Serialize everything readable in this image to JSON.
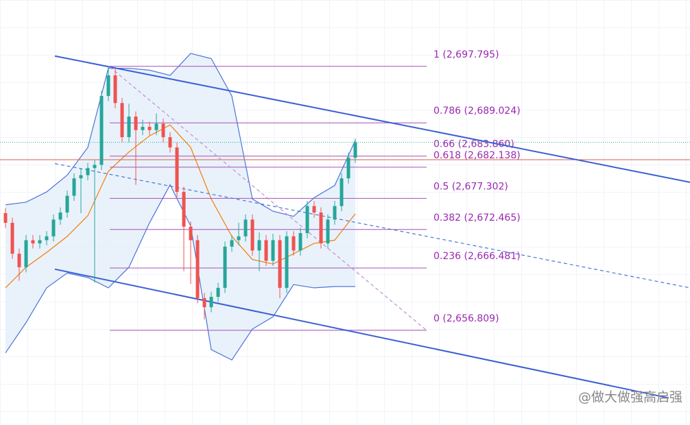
{
  "chart_data": {
    "type": "candlestick",
    "xlim": [
      -0.8,
      99.8
    ],
    "ylim": [
      2642.1,
      2708.1
    ],
    "candles": {
      "up_color": "#26a69a",
      "down_color": "#ef5350",
      "open": [
        2675.0,
        2673.5,
        2668.7,
        2666.6,
        2670.8,
        2670.3,
        2670.8,
        2671.4,
        2674.0,
        2675.1,
        2677.7,
        2680.4,
        2680.9,
        2682.0,
        2682.5,
        2693.2,
        2696.4,
        2692.1,
        2686.8,
        2690.0,
        2687.9,
        2688.4,
        2687.9,
        2688.9,
        2686.8,
        2685.2,
        2678.3,
        2672.9,
        2670.8,
        2661.8,
        2660.4,
        2662.0,
        2663.4,
        2669.8,
        2670.8,
        2671.4,
        2674.0,
        2669.2,
        2670.8,
        2667.6,
        2670.8,
        2663.4,
        2671.4,
        2669.2,
        2671.9,
        2676.1,
        2675.1,
        2670.3,
        2674.0,
        2676.1,
        2680.4,
        2683.6
      ],
      "high": [
        2675.8,
        2674.3,
        2669.5,
        2671.6,
        2671.6,
        2671.6,
        2672.2,
        2674.8,
        2675.9,
        2678.5,
        2681.2,
        2682.0,
        2682.8,
        2683.3,
        2694.0,
        2697.8,
        2697.5,
        2692.9,
        2692.0,
        2690.8,
        2689.5,
        2689.2,
        2690.5,
        2689.7,
        2687.6,
        2686.0,
        2679.1,
        2673.7,
        2671.6,
        2662.6,
        2662.8,
        2664.2,
        2670.6,
        2671.6,
        2673.5,
        2674.8,
        2674.8,
        2672.0,
        2671.6,
        2671.8,
        2671.6,
        2672.2,
        2672.2,
        2672.7,
        2676.9,
        2676.9,
        2675.9,
        2674.8,
        2676.9,
        2681.2,
        2684.4,
        2686.6
      ],
      "low": [
        2672.7,
        2667.9,
        2664.5,
        2665.8,
        2669.5,
        2669.5,
        2670.0,
        2670.6,
        2673.2,
        2674.3,
        2676.9,
        2675.0,
        2680.1,
        2664.2,
        2681.7,
        2692.4,
        2691.3,
        2686.0,
        2686.0,
        2679.4,
        2687.1,
        2687.1,
        2687.1,
        2686.0,
        2684.4,
        2677.5,
        2666.0,
        2664.0,
        2661.0,
        2658.5,
        2659.6,
        2661.2,
        2662.6,
        2669.0,
        2670.0,
        2670.6,
        2668.4,
        2666.0,
        2666.8,
        2666.8,
        2661.8,
        2662.6,
        2668.4,
        2668.4,
        2671.1,
        2674.3,
        2669.5,
        2669.5,
        2673.2,
        2675.3,
        2679.6,
        2682.8
      ],
      "close": [
        2673.5,
        2668.7,
        2666.6,
        2670.8,
        2670.3,
        2670.8,
        2671.4,
        2674.0,
        2675.1,
        2677.7,
        2680.4,
        2680.9,
        2682.0,
        2682.5,
        2693.2,
        2696.4,
        2692.1,
        2686.8,
        2690.0,
        2687.9,
        2688.4,
        2687.9,
        2688.9,
        2686.8,
        2685.2,
        2678.3,
        2672.9,
        2670.8,
        2661.8,
        2660.4,
        2662.0,
        2663.4,
        2669.8,
        2670.8,
        2671.4,
        2674.0,
        2669.2,
        2670.8,
        2667.6,
        2670.8,
        2663.4,
        2671.4,
        2669.2,
        2671.9,
        2676.1,
        2675.1,
        2670.3,
        2674.0,
        2676.1,
        2680.4,
        2683.6,
        2686.0
      ]
    },
    "bands": {
      "color": "#4a74d8",
      "fill": "#e3effa",
      "x": [
        0,
        3,
        6,
        9,
        12,
        15,
        18,
        21,
        24,
        27,
        30,
        33,
        36,
        39,
        42,
        45,
        48,
        51
      ],
      "upper": [
        2676.3,
        2676.7,
        2678.3,
        2680.9,
        2685.2,
        2697.5,
        2697.5,
        2697.2,
        2696.4,
        2699.8,
        2699.0,
        2693.2,
        2677.2,
        2675.3,
        2674.5,
        2677.4,
        2679.3,
        2686.3
      ],
      "lower": [
        2653.3,
        2658.0,
        2663.4,
        2665.7,
        2665.0,
        2663.4,
        2666.6,
        2673.5,
        2679.4,
        2673.0,
        2653.8,
        2652.2,
        2657.0,
        2658.9,
        2663.9,
        2663.4,
        2663.6,
        2663.6
      ]
    },
    "ma": {
      "color": "#f57c00",
      "x": [
        0,
        3,
        6,
        9,
        12,
        15,
        18,
        21,
        24,
        27,
        30,
        33,
        36,
        39,
        42,
        45,
        48,
        51
      ],
      "values": [
        2663.4,
        2666.6,
        2668.9,
        2671.4,
        2674.6,
        2681.5,
        2684.5,
        2687.0,
        2688.7,
        2685.2,
        2677.2,
        2671.4,
        2667.8,
        2667.1,
        2668.7,
        2670.3,
        2670.8,
        2674.9
      ]
    },
    "trend_lines": [
      {
        "color": "#3a5fd4",
        "dash": false,
        "x": [
          7.2,
          99.8
        ],
        "values": [
          2699.4,
          2679.8
        ]
      },
      {
        "color": "#3a5fd4",
        "dash": false,
        "x": [
          7.2,
          96.7
        ],
        "values": [
          2666.3,
          2646.3
        ]
      },
      {
        "color": "#4a74d8",
        "dash": true,
        "x": [
          7.2,
          99.8
        ],
        "values": [
          2682.7,
          2663.4
        ]
      },
      {
        "color": "#c58ad0",
        "dash": true,
        "x": [
          15.2,
          61.4
        ],
        "values": [
          2697.7,
          2656.8
        ]
      }
    ],
    "fib": {
      "color": "#a450b4",
      "x": [
        15.2,
        61.4
      ],
      "levels": [
        {
          "value": 2697.795,
          "label": "1 (2,697.795)"
        },
        {
          "value": 2689.024,
          "label": "0.786 (2,689.024)"
        },
        {
          "value": 2683.86,
          "label": "0.66 (2,683.860)"
        },
        {
          "value": 2682.138,
          "label": "0.618 (2,682.138)"
        },
        {
          "value": 2677.302,
          "label": "0.5 (2,677.302)"
        },
        {
          "value": 2672.465,
          "label": "0.382 (2,672.465)"
        },
        {
          "value": 2666.481,
          "label": "0.236 (2,666.481)"
        },
        {
          "value": 2656.809,
          "label": "0 (2,656.809)"
        }
      ]
    },
    "hline": {
      "value": 2683.3,
      "color": "#e05a4a"
    },
    "last_price_color": "#26a69a",
    "watermark": "@做大做强高启强"
  }
}
